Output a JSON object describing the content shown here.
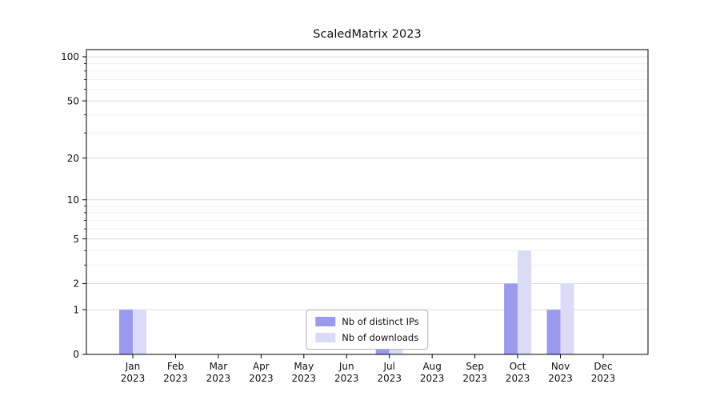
{
  "chart_data": {
    "type": "bar",
    "title": "ScaledMatrix 2023",
    "categories": [
      "Jan",
      "Feb",
      "Mar",
      "Apr",
      "May",
      "Jun",
      "Jul",
      "Aug",
      "Sep",
      "Oct",
      "Nov",
      "Dec"
    ],
    "year_label": "2023",
    "series": [
      {
        "name": "Nb of distinct IPs",
        "color": "#9b9bee",
        "values": [
          1,
          0,
          0,
          0,
          0,
          0,
          1,
          0,
          0,
          2,
          1,
          0
        ]
      },
      {
        "name": "Nb of downloads",
        "color": "#dbdbf8",
        "values": [
          1,
          0,
          0,
          0,
          0,
          0,
          1,
          0,
          0,
          4,
          2,
          0
        ]
      }
    ],
    "y_ticks": [
      0,
      1,
      2,
      5,
      10,
      20,
      50,
      100
    ],
    "y_minor_ticks": [
      3,
      4,
      6,
      7,
      8,
      9,
      30,
      40,
      60,
      70,
      80,
      90
    ],
    "scale": "log1p",
    "ylim": [
      0,
      110
    ],
    "grid": true,
    "legend_position": "lower-center"
  }
}
